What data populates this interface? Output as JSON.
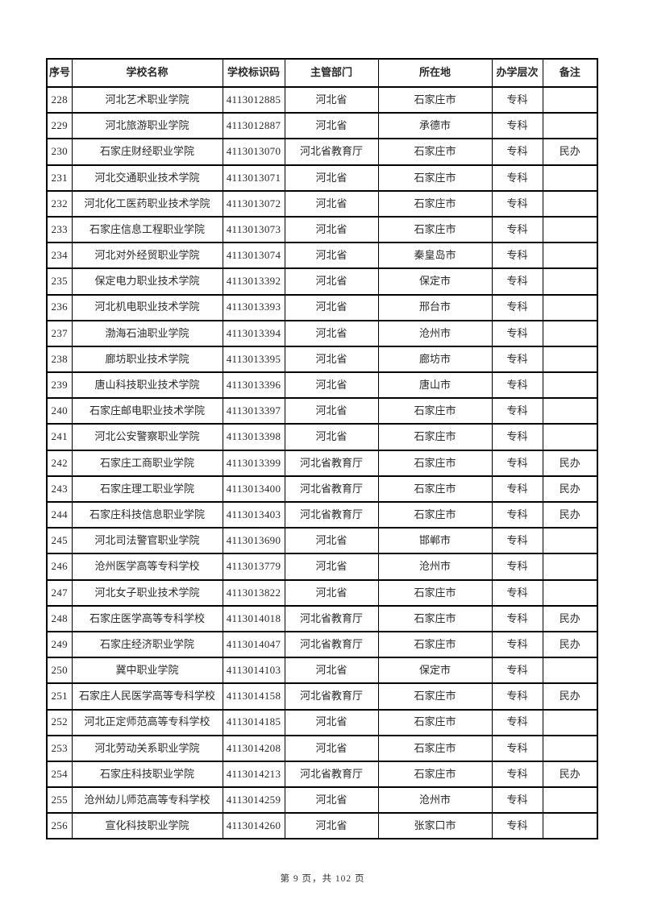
{
  "table": {
    "columns": [
      "序号",
      "学校名称",
      "学校标识码",
      "主管部门",
      "所在地",
      "办学层次",
      "备注"
    ],
    "rows": [
      [
        "228",
        "河北艺术职业学院",
        "4113012885",
        "河北省",
        "石家庄市",
        "专科",
        ""
      ],
      [
        "229",
        "河北旅游职业学院",
        "4113012887",
        "河北省",
        "承德市",
        "专科",
        ""
      ],
      [
        "230",
        "石家庄财经职业学院",
        "4113013070",
        "河北省教育厅",
        "石家庄市",
        "专科",
        "民办"
      ],
      [
        "231",
        "河北交通职业技术学院",
        "4113013071",
        "河北省",
        "石家庄市",
        "专科",
        ""
      ],
      [
        "232",
        "河北化工医药职业技术学院",
        "4113013072",
        "河北省",
        "石家庄市",
        "专科",
        ""
      ],
      [
        "233",
        "石家庄信息工程职业学院",
        "4113013073",
        "河北省",
        "石家庄市",
        "专科",
        ""
      ],
      [
        "234",
        "河北对外经贸职业学院",
        "4113013074",
        "河北省",
        "秦皇岛市",
        "专科",
        ""
      ],
      [
        "235",
        "保定电力职业技术学院",
        "4113013392",
        "河北省",
        "保定市",
        "专科",
        ""
      ],
      [
        "236",
        "河北机电职业技术学院",
        "4113013393",
        "河北省",
        "邢台市",
        "专科",
        ""
      ],
      [
        "237",
        "渤海石油职业学院",
        "4113013394",
        "河北省",
        "沧州市",
        "专科",
        ""
      ],
      [
        "238",
        "廊坊职业技术学院",
        "4113013395",
        "河北省",
        "廊坊市",
        "专科",
        ""
      ],
      [
        "239",
        "唐山科技职业技术学院",
        "4113013396",
        "河北省",
        "唐山市",
        "专科",
        ""
      ],
      [
        "240",
        "石家庄邮电职业技术学院",
        "4113013397",
        "河北省",
        "石家庄市",
        "专科",
        ""
      ],
      [
        "241",
        "河北公安警察职业学院",
        "4113013398",
        "河北省",
        "石家庄市",
        "专科",
        ""
      ],
      [
        "242",
        "石家庄工商职业学院",
        "4113013399",
        "河北省教育厅",
        "石家庄市",
        "专科",
        "民办"
      ],
      [
        "243",
        "石家庄理工职业学院",
        "4113013400",
        "河北省教育厅",
        "石家庄市",
        "专科",
        "民办"
      ],
      [
        "244",
        "石家庄科技信息职业学院",
        "4113013403",
        "河北省教育厅",
        "石家庄市",
        "专科",
        "民办"
      ],
      [
        "245",
        "河北司法警官职业学院",
        "4113013690",
        "河北省",
        "邯郸市",
        "专科",
        ""
      ],
      [
        "246",
        "沧州医学高等专科学校",
        "4113013779",
        "河北省",
        "沧州市",
        "专科",
        ""
      ],
      [
        "247",
        "河北女子职业技术学院",
        "4113013822",
        "河北省",
        "石家庄市",
        "专科",
        ""
      ],
      [
        "248",
        "石家庄医学高等专科学校",
        "4113014018",
        "河北省教育厅",
        "石家庄市",
        "专科",
        "民办"
      ],
      [
        "249",
        "石家庄经济职业学院",
        "4113014047",
        "河北省教育厅",
        "石家庄市",
        "专科",
        "民办"
      ],
      [
        "250",
        "冀中职业学院",
        "4113014103",
        "河北省",
        "保定市",
        "专科",
        ""
      ],
      [
        "251",
        "石家庄人民医学高等专科学校",
        "4113014158",
        "河北省教育厅",
        "石家庄市",
        "专科",
        "民办"
      ],
      [
        "252",
        "河北正定师范高等专科学校",
        "4113014185",
        "河北省",
        "石家庄市",
        "专科",
        ""
      ],
      [
        "253",
        "河北劳动关系职业学院",
        "4113014208",
        "河北省",
        "石家庄市",
        "专科",
        ""
      ],
      [
        "254",
        "石家庄科技职业学院",
        "4113014213",
        "河北省教育厅",
        "石家庄市",
        "专科",
        "民办"
      ],
      [
        "255",
        "沧州幼儿师范高等专科学校",
        "4113014259",
        "河北省",
        "沧州市",
        "专科",
        ""
      ],
      [
        "256",
        "宣化科技职业学院",
        "4113014260",
        "河北省",
        "张家口市",
        "专科",
        ""
      ]
    ]
  },
  "footer": {
    "text": "第 9 页，共 102 页"
  }
}
